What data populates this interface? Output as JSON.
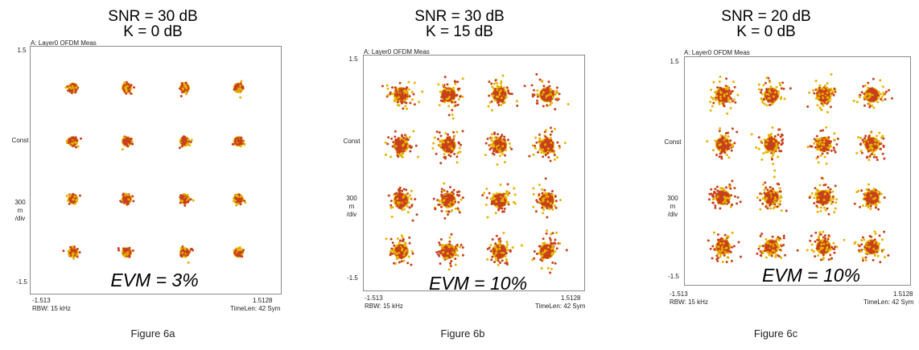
{
  "chart_data": [
    {
      "type": "scatter",
      "title": [
        "SNR = 30 dB",
        "K = 0 dB"
      ],
      "header": "A: Layer0 OFDM Meas",
      "ylabel": [
        "Const",
        "300",
        "m",
        "/div"
      ],
      "ytick_top": "1.5",
      "ytick_bottom": "-1.5",
      "xtick_left": "-1.513",
      "xtick_right": "1.5128",
      "footer_left": "RBW: 15 kHz",
      "footer_right": "TimeLen: 42 Sym",
      "annotation": "EVM = 3%",
      "evm_percent": 3,
      "caption": "Figure 6a",
      "xlim": [
        -1.513,
        1.5128
      ],
      "ylim": [
        -1.5,
        1.5
      ],
      "constellation": [
        -1.0,
        -0.35,
        0.35,
        1.0
      ],
      "spread": 0.035
    },
    {
      "type": "scatter",
      "title": [
        "SNR = 30 dB",
        "K = 15 dB"
      ],
      "header": "A: Layer0 OFDM Meas",
      "ylabel": [
        "Const",
        "300",
        "m",
        "/div"
      ],
      "ytick_top": "1.5",
      "ytick_bottom": "-1.5",
      "xtick_left": "-1.513",
      "xtick_right": "1.5128",
      "footer_left": "RBW: 15 kHz",
      "footer_right": "TimeLen: 42 Sym",
      "annotation": "EVM = 10%",
      "evm_percent": 10,
      "caption": "Figure 6b",
      "xlim": [
        -1.513,
        1.5128
      ],
      "ylim": [
        -1.5,
        1.5
      ],
      "constellation": [
        -1.0,
        -0.35,
        0.35,
        1.0
      ],
      "spread": 0.09
    },
    {
      "type": "scatter",
      "title": [
        "SNR = 20 dB",
        "K = 0 dB"
      ],
      "header": "A: Layer0 OFDM Meas",
      "ylabel": [
        "Const",
        "300",
        "m",
        "/div"
      ],
      "ytick_top": "1.5",
      "ytick_bottom": "-1.5",
      "xtick_left": "-1.513",
      "xtick_right": "1.5128",
      "footer_left": "RBW: 15 kHz",
      "footer_right": "TimeLen: 42 Sym",
      "annotation": "EVM = 10%",
      "evm_percent": 10,
      "caption": "Figure 6c",
      "xlim": [
        -1.513,
        1.5128
      ],
      "ylim": [
        -1.5,
        1.5
      ],
      "constellation": [
        -1.0,
        -0.35,
        0.35,
        1.0
      ],
      "spread": 0.09
    }
  ],
  "colors": {
    "point_core": "#c8401c",
    "point_edge": "#e6b400",
    "frame": "#8a8a8a"
  }
}
